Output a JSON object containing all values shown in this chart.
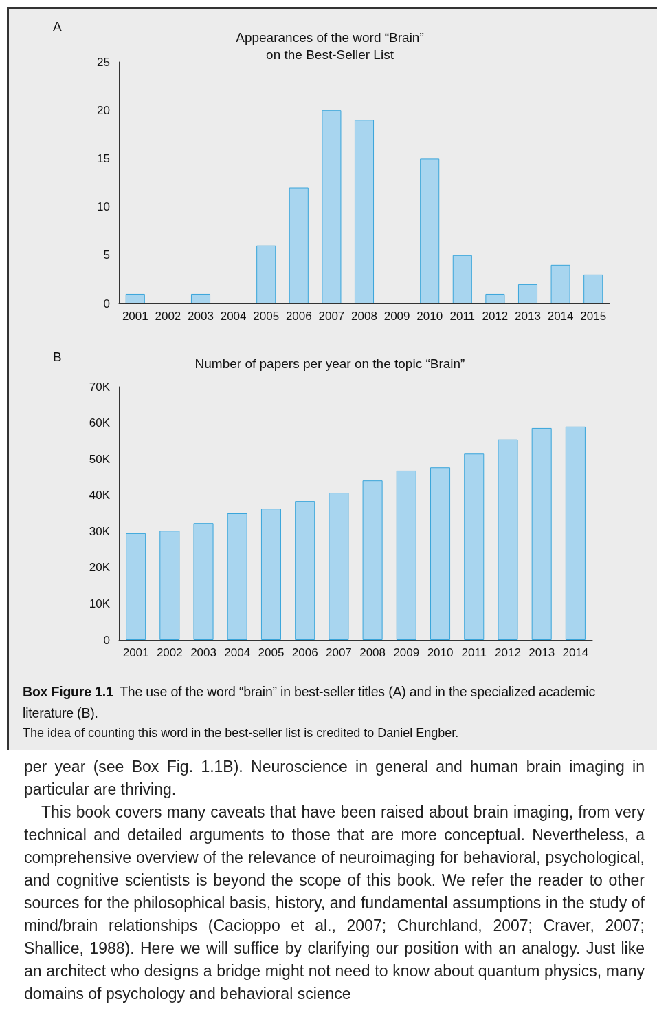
{
  "chart_data": [
    {
      "type": "bar",
      "title": "Appearances of the word “Brain”\non the Best-Seller List",
      "categories": [
        "2001",
        "2002",
        "2003",
        "2004",
        "2005",
        "2006",
        "2007",
        "2008",
        "2009",
        "2010",
        "2011",
        "2012",
        "2013",
        "2014",
        "2015"
      ],
      "series": [
        {
          "color": "#a8d5ef",
          "values": [
            1,
            0,
            1,
            0,
            6,
            12,
            20,
            19,
            0,
            15,
            5,
            1,
            2,
            4,
            3
          ]
        }
      ],
      "ylim": [
        0,
        25
      ],
      "yticks": [
        0,
        5,
        10,
        15,
        20,
        25
      ],
      "grid": false,
      "annotations": [
        "A"
      ]
    },
    {
      "type": "bar",
      "title": "Number of papers per year on the topic “Brain”",
      "categories": [
        "2001",
        "2002",
        "2003",
        "2004",
        "2005",
        "2006",
        "2007",
        "2008",
        "2009",
        "2010",
        "2011",
        "2012",
        "2013",
        "2014"
      ],
      "series": [
        {
          "color": "#a8d5ef",
          "values": [
            29500,
            30200,
            32300,
            35000,
            36300,
            38400,
            40700,
            44100,
            46800,
            47700,
            51500,
            55400,
            58600,
            59000
          ]
        }
      ],
      "ylim": [
        0,
        70000
      ],
      "yticks": [
        0,
        {
          "value": 10000,
          "label": "10K"
        },
        {
          "value": 20000,
          "label": "20K"
        },
        {
          "value": 30000,
          "label": "30K"
        },
        {
          "value": 40000,
          "label": "40K"
        },
        {
          "value": 50000,
          "label": "50K"
        },
        {
          "value": 60000,
          "label": "60K"
        },
        {
          "value": 70000,
          "label": "70K"
        }
      ],
      "grid": false,
      "annotations": [
        "B",
        "Box Figure 1.1",
        "The use of the word “brain” in best-seller titles (A) and in the specialized academic literature (B).",
        "The idea of counting this word in the best-seller list is credited to Daniel Engber.",
        "per year (see Box Fig. 1.1B). Neuroscience in general and human brain imaging in particular are thriving.",
        "This book covers many caveats that have been raised about brain imaging, from very technical and detailed arguments to those that are more conceptual. Nevertheless, a comprehensive overview of the relevance of neuroimaging for behavioral, psychological, and cognitive scientists is beyond the scope of this book. We refer the reader to other sources for the philosophical basis, history, and fundamental assumptions in the study of mind/brain relationships (Cacioppo et al., 2007; Churchland, 2007; Craver, 2007; Shallice, 1988). Here we will suffice by clarifying our position with an analogy. Just like an architect who designs a bridge might not need to know about quantum physics, many domains of psychology and behavioral science"
      ]
    }
  ]
}
